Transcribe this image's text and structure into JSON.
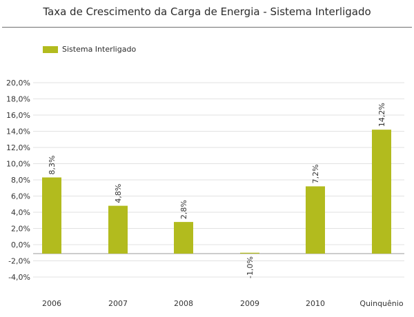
{
  "chart_data": {
    "type": "bar",
    "title": "Taxa de Crescimento da Carga de Energia - Sistema Interligado",
    "xlabel": "",
    "ylabel": "",
    "categories": [
      "2006",
      "2007",
      "2008",
      "2009",
      "2010",
      "Quinquênio"
    ],
    "series": [
      {
        "name": "Sistema Interligado",
        "values": [
          8.3,
          4.8,
          2.8,
          -1.0,
          7.2,
          14.2
        ],
        "labels": [
          "8,3%",
          "4,8%",
          "2,8%",
          "-1,0%",
          "7,2%",
          "14,2%"
        ]
      }
    ],
    "ylim": [
      -5.0,
      20.0
    ],
    "yticks": [
      -4.0,
      -2.0,
      0.0,
      2.0,
      4.0,
      6.0,
      8.0,
      10.0,
      12.0,
      14.0,
      16.0,
      18.0,
      20.0
    ],
    "ytick_labels": [
      "-4,0%",
      "-2,0%",
      "0,0%",
      "2,0%",
      "4,0%",
      "6,0%",
      "8,0%",
      "10,0%",
      "12,0%",
      "14,0%",
      "16,0%",
      "18,0%",
      "20,0%"
    ],
    "grid": true,
    "legend": "top-left",
    "colors": {
      "bar": "#b2bb1e",
      "grid": "#e2e2e2",
      "zero_line": "#9a9a9a"
    }
  }
}
